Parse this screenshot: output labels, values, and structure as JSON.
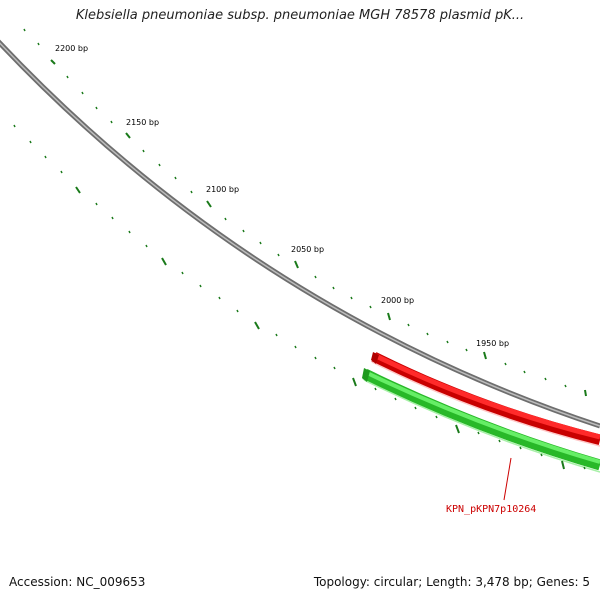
{
  "title": "Klebsiella pneumoniae subsp. pneumoniae MGH 78578 plasmid pK...",
  "footer": {
    "accession": "Accession: NC_009653",
    "summary": "Topology: circular; Length: 3,478 bp; Genes: 5"
  },
  "ruler": {
    "labels": [
      "2200 bp",
      "2150 bp",
      "2100 bp",
      "2050 bp",
      "2000 bp",
      "1950 bp"
    ]
  },
  "genes": [
    {
      "name": "KPN_pKPN7p10264",
      "color": "#dd0000",
      "label_color": "#cc0000"
    }
  ],
  "colors": {
    "backbone": "#8a8a8a",
    "ticks": "#1a7a1a",
    "forward_feature": "#ee1111",
    "reverse_feature": "#33cc33"
  }
}
